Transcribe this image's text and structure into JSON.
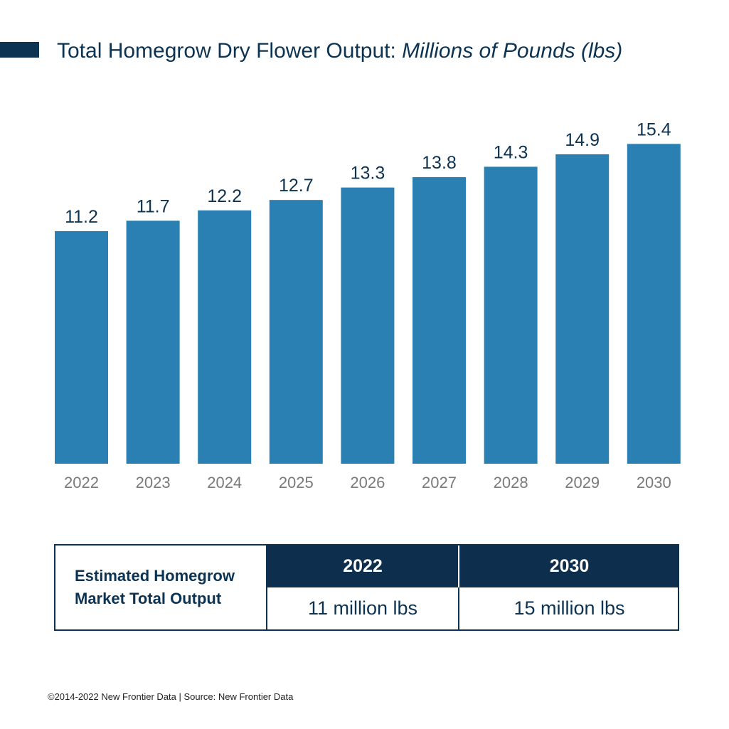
{
  "title": {
    "main": "Total Homegrow Dry Flower Output:",
    "sub": "Millions of Pounds (lbs)"
  },
  "colors": {
    "bar": "#2a80b3",
    "dark_navy": "#0d3352"
  },
  "chart_data": {
    "type": "bar",
    "title": "Total Homegrow Dry Flower Output: Millions of Pounds (lbs)",
    "xlabel": "",
    "ylabel": "",
    "categories": [
      "2022",
      "2023",
      "2024",
      "2025",
      "2026",
      "2027",
      "2028",
      "2029",
      "2030"
    ],
    "values": [
      11.2,
      11.7,
      12.2,
      12.7,
      13.3,
      13.8,
      14.3,
      14.9,
      15.4
    ],
    "value_labels": [
      "11.2",
      "11.7",
      "12.2",
      "12.7",
      "13.3",
      "13.8",
      "14.3",
      "14.9",
      "15.4"
    ],
    "ylim": [
      0,
      17.0
    ],
    "grid": false
  },
  "summary": {
    "label": "Estimated Homegrow Market Total Output",
    "headers": [
      "2022",
      "2030"
    ],
    "values": [
      "11 million lbs",
      "15 million lbs"
    ]
  },
  "footer": "©2014-2022  New Frontier Data | Source: New Frontier Data"
}
